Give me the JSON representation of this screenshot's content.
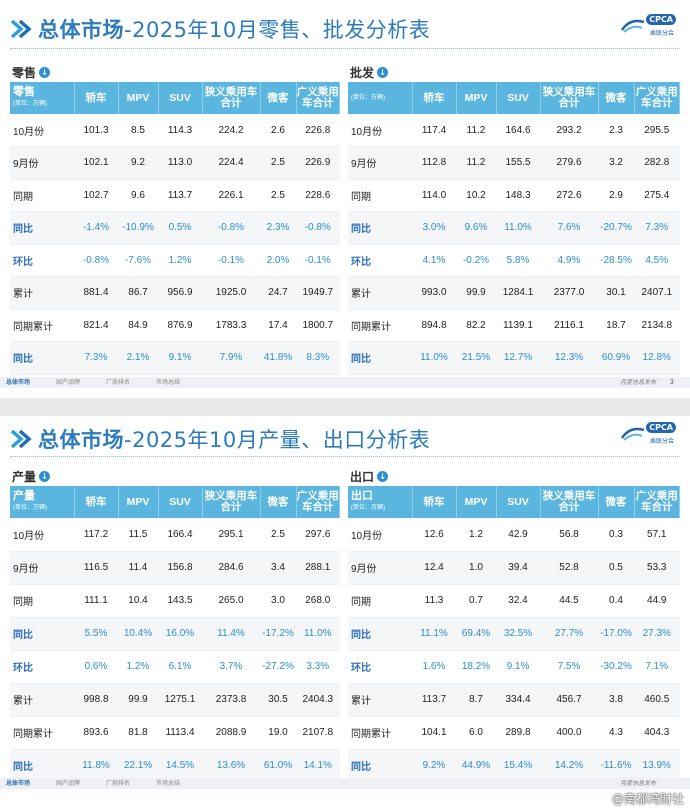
{
  "headers": [
    "轿车",
    "MPV",
    "SUV",
    "狭义乘用车合计",
    "微客",
    "广义乘用车合计"
  ],
  "unit": "(单位：万辆)",
  "slide1": {
    "title_bold": "总体市场",
    "title_rest": "-2025年10月零售、批发分析表",
    "logo": "CPCA",
    "logo_sub": "乘联分会",
    "footer_right": "月度信息发布",
    "page": "3",
    "footer_items": [
      "总体市场",
      "国产品牌",
      "厂商排名",
      "市场总结"
    ],
    "left": {
      "label": "零售",
      "head": "零售",
      "rows": [
        {
          "name": "10月份",
          "values": [
            "101.3",
            "8.5",
            "114.3",
            "224.2",
            "2.6",
            "226.8"
          ],
          "pct": false
        },
        {
          "name": "9月份",
          "values": [
            "102.1",
            "9.2",
            "113.0",
            "224.4",
            "2.5",
            "226.9"
          ],
          "pct": false
        },
        {
          "name": "同期",
          "values": [
            "102.7",
            "9.6",
            "113.7",
            "226.1",
            "2.5",
            "228.6"
          ],
          "pct": false
        },
        {
          "name": "同比",
          "values": [
            "-1.4%",
            "-10.9%",
            "0.5%",
            "-0.8%",
            "2.3%",
            "-0.8%"
          ],
          "pct": true
        },
        {
          "name": "环比",
          "values": [
            "-0.8%",
            "-7.6%",
            "1.2%",
            "-0.1%",
            "2.0%",
            "-0.1%"
          ],
          "pct": true
        },
        {
          "name": "累计",
          "values": [
            "881.4",
            "86.7",
            "956.9",
            "1925.0",
            "24.7",
            "1949.7"
          ],
          "pct": false
        },
        {
          "name": "同期累计",
          "values": [
            "821.4",
            "84.9",
            "876.9",
            "1783.3",
            "17.4",
            "1800.7"
          ],
          "pct": false
        },
        {
          "name": "同比",
          "values": [
            "7.3%",
            "2.1%",
            "9.1%",
            "7.9%",
            "41.8%",
            "8.3%"
          ],
          "pct": true
        }
      ]
    },
    "right": {
      "label": "批发",
      "head": "",
      "rows": [
        {
          "name": "10月份",
          "values": [
            "117.4",
            "11.2",
            "164.6",
            "293.2",
            "2.3",
            "295.5"
          ],
          "pct": false
        },
        {
          "name": "9月份",
          "values": [
            "112.8",
            "11.2",
            "155.5",
            "279.6",
            "3.2",
            "282.8"
          ],
          "pct": false
        },
        {
          "name": "同期",
          "values": [
            "114.0",
            "10.2",
            "148.3",
            "272.6",
            "2.9",
            "275.4"
          ],
          "pct": false
        },
        {
          "name": "同比",
          "values": [
            "3.0%",
            "9.6%",
            "11.0%",
            "7.6%",
            "-20.7%",
            "7.3%"
          ],
          "pct": true
        },
        {
          "name": "环比",
          "values": [
            "4.1%",
            "-0.2%",
            "5.8%",
            "4.9%",
            "-28.5%",
            "4.5%"
          ],
          "pct": true
        },
        {
          "name": "累计",
          "values": [
            "993.0",
            "99.9",
            "1284.1",
            "2377.0",
            "30.1",
            "2407.1"
          ],
          "pct": false
        },
        {
          "name": "同期累计",
          "values": [
            "894.8",
            "82.2",
            "1139.1",
            "2116.1",
            "18.7",
            "2134.8"
          ],
          "pct": false
        },
        {
          "name": "同比",
          "values": [
            "11.0%",
            "21.5%",
            "12.7%",
            "12.3%",
            "60.9%",
            "12.8%"
          ],
          "pct": true
        }
      ]
    }
  },
  "slide2": {
    "title_bold": "总体市场",
    "title_rest": "-2025年10月产量、出口分析表",
    "logo": "CPCA",
    "logo_sub": "乘联分会",
    "footer_right": "月度信息发布",
    "footer_items": [
      "总体市场",
      "国产品牌",
      "厂商排名",
      "市场总结"
    ],
    "left": {
      "label": "产量",
      "head": "产量",
      "rows": [
        {
          "name": "10月份",
          "values": [
            "117.2",
            "11.5",
            "166.4",
            "295.1",
            "2.5",
            "297.6"
          ],
          "pct": false
        },
        {
          "name": "9月份",
          "values": [
            "116.5",
            "11.4",
            "156.8",
            "284.6",
            "3.4",
            "288.1"
          ],
          "pct": false
        },
        {
          "name": "同期",
          "values": [
            "111.1",
            "10.4",
            "143.5",
            "265.0",
            "3.0",
            "268.0"
          ],
          "pct": false
        },
        {
          "name": "同比",
          "values": [
            "5.5%",
            "10.4%",
            "16.0%",
            "11.4%",
            "-17.2%",
            "11.0%"
          ],
          "pct": true
        },
        {
          "name": "环比",
          "values": [
            "0.6%",
            "1.2%",
            "6.1%",
            "3.7%",
            "-27.2%",
            "3.3%"
          ],
          "pct": true
        },
        {
          "name": "累计",
          "values": [
            "998.8",
            "99.9",
            "1275.1",
            "2373.8",
            "30.5",
            "2404.3"
          ],
          "pct": false
        },
        {
          "name": "同期累计",
          "values": [
            "893.6",
            "81.8",
            "1113.4",
            "2088.9",
            "19.0",
            "2107.8"
          ],
          "pct": false
        },
        {
          "name": "同比",
          "values": [
            "11.8%",
            "22.1%",
            "14.5%",
            "13.6%",
            "61.0%",
            "14.1%"
          ],
          "pct": true
        }
      ]
    },
    "right": {
      "label": "出口",
      "head": "出口",
      "rows": [
        {
          "name": "10月份",
          "values": [
            "12.6",
            "1.2",
            "42.9",
            "56.8",
            "0.3",
            "57.1"
          ],
          "pct": false
        },
        {
          "name": "9月份",
          "values": [
            "12.4",
            "1.0",
            "39.4",
            "52.8",
            "0.5",
            "53.3"
          ],
          "pct": false
        },
        {
          "name": "同期",
          "values": [
            "11.3",
            "0.7",
            "32.4",
            "44.5",
            "0.4",
            "44.9"
          ],
          "pct": false
        },
        {
          "name": "同比",
          "values": [
            "11.1%",
            "69.4%",
            "32.5%",
            "27.7%",
            "-17.0%",
            "27.3%"
          ],
          "pct": true
        },
        {
          "name": "环比",
          "values": [
            "1.6%",
            "18.2%",
            "9.1%",
            "7.5%",
            "-30.2%",
            "7.1%"
          ],
          "pct": true
        },
        {
          "name": "累计",
          "values": [
            "113.7",
            "8.7",
            "334.4",
            "456.7",
            "3.8",
            "460.5"
          ],
          "pct": false
        },
        {
          "name": "同期累计",
          "values": [
            "104.1",
            "6.0",
            "289.8",
            "400.0",
            "4.3",
            "404.3"
          ],
          "pct": false
        },
        {
          "name": "同比",
          "values": [
            "9.2%",
            "44.9%",
            "15.4%",
            "14.2%",
            "-11.6%",
            "13.9%"
          ],
          "pct": true
        }
      ]
    }
  },
  "watermark": "@南都湾财社"
}
